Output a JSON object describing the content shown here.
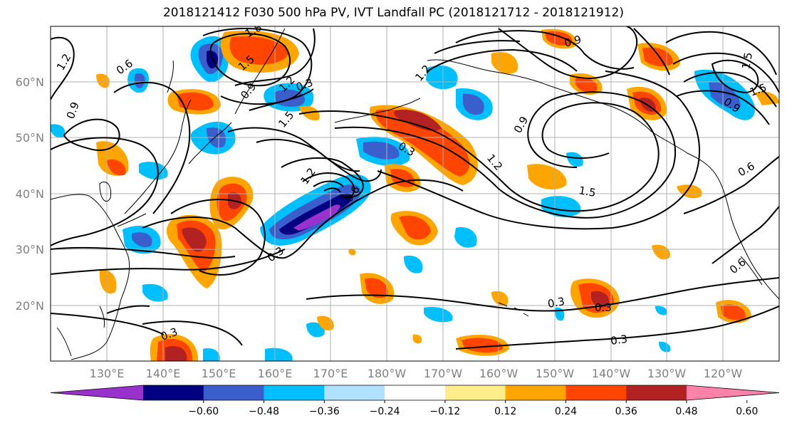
{
  "title": "2018121412 F030 500 hPa PV, IVT Landfall PC (2018121712 - 2018121912)",
  "lat_labels": [
    "60°N",
    "50°N",
    "40°N",
    "30°N",
    "20°N"
  ],
  "lon_labels": [
    "130°E",
    "140°E",
    "150°E",
    "160°E",
    "170°E",
    "180°W",
    "170°W",
    "160°W",
    "150°W",
    "140°W",
    "130°W",
    "120°W"
  ],
  "colorbar": {
    "tick_labels": [
      "−0.60",
      "−0.48",
      "−0.36",
      "−0.24",
      "−0.12",
      "0.12",
      "0.24",
      "0.36",
      "0.48",
      "0.60"
    ],
    "colors": [
      "#9932cc",
      "#000080",
      "#3a5fcd",
      "#00bfff",
      "#b0e2ff",
      "#ffffff",
      "#ffec8b",
      "#ffa500",
      "#ff4500",
      "#b22222",
      "#ff82ab"
    ]
  },
  "contour_labels": [
    "1.2",
    "0.6",
    "0.9",
    "1.5",
    "1.8",
    "0.3",
    "1.2",
    "0.9",
    "1.5",
    "1.2",
    "0.3",
    "0.9",
    "1.2",
    "1.5",
    "0.6",
    "0.3",
    "0.3",
    "0.3",
    "0.3",
    "0.6",
    "0.9",
    "1.5",
    "0.6",
    "0.9",
    "0.3",
    "1.2",
    "1.5"
  ]
}
